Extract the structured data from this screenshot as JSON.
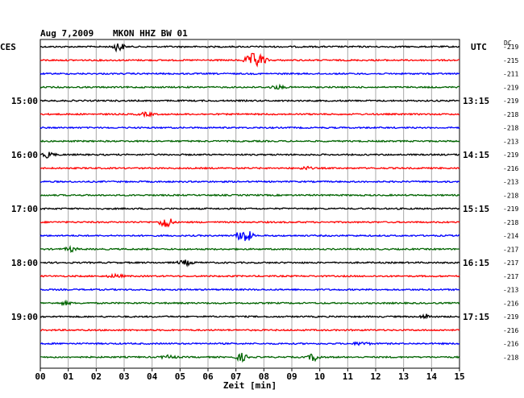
{
  "header": {
    "date": "Aug 7,2009",
    "station": "MKON HHZ BW 01",
    "left_timezone": "CES",
    "right_timezone": "UTC",
    "dc_label": "DC"
  },
  "chart_data": {
    "type": "line",
    "title": "",
    "xlabel": "Zeit [min]",
    "ylabel": "",
    "xlim": [
      0,
      15
    ],
    "x_ticks": [
      "00",
      "01",
      "02",
      "03",
      "04",
      "05",
      "06",
      "07",
      "08",
      "09",
      "10",
      "11",
      "12",
      "13",
      "14",
      "15"
    ],
    "minutes_per_trace": 15,
    "trace_colors": [
      "#000000",
      "#ff0000",
      "#0000ff",
      "#006400"
    ],
    "left_hour_labels": [
      {
        "trace": 4,
        "label": "15:00"
      },
      {
        "trace": 8,
        "label": "16:00"
      },
      {
        "trace": 12,
        "label": "17:00"
      },
      {
        "trace": 16,
        "label": "18:00"
      },
      {
        "trace": 20,
        "label": "19:00"
      }
    ],
    "right_hour_labels": [
      {
        "trace": 4,
        "label": "13:15"
      },
      {
        "trace": 8,
        "label": "14:15"
      },
      {
        "trace": 12,
        "label": "15:15"
      },
      {
        "trace": 16,
        "label": "16:15"
      },
      {
        "trace": 20,
        "label": "17:15"
      }
    ],
    "dc_offsets": [
      -219,
      -215,
      -211,
      -219,
      -219,
      -218,
      -218,
      -213,
      -219,
      -216,
      -213,
      -218,
      -219,
      -218,
      -214,
      -217,
      -217,
      -217,
      -213,
      -216,
      -219,
      -216,
      -216,
      -218
    ],
    "events": [
      {
        "trace": 0,
        "minute": 2.8,
        "amplitude": 6,
        "width": 0.3
      },
      {
        "trace": 1,
        "minute": 7.7,
        "amplitude": 10,
        "width": 0.5
      },
      {
        "trace": 3,
        "minute": 8.5,
        "amplitude": 2,
        "width": 0.4
      },
      {
        "trace": 5,
        "minute": 3.8,
        "amplitude": 2,
        "width": 0.4
      },
      {
        "trace": 8,
        "minute": 0.3,
        "amplitude": 4,
        "width": 0.3
      },
      {
        "trace": 9,
        "minute": 9.5,
        "amplitude": 2,
        "width": 0.3
      },
      {
        "trace": 13,
        "minute": 4.5,
        "amplitude": 9,
        "width": 0.3
      },
      {
        "trace": 14,
        "minute": 7.3,
        "amplitude": 9,
        "width": 0.4
      },
      {
        "trace": 15,
        "minute": 1.1,
        "amplitude": 3,
        "width": 0.3
      },
      {
        "trace": 16,
        "minute": 5.2,
        "amplitude": 3,
        "width": 0.4
      },
      {
        "trace": 17,
        "minute": 2.7,
        "amplitude": 2,
        "width": 0.4
      },
      {
        "trace": 19,
        "minute": 0.9,
        "amplitude": 2,
        "width": 0.3
      },
      {
        "trace": 20,
        "minute": 13.8,
        "amplitude": 3,
        "width": 0.3
      },
      {
        "trace": 22,
        "minute": 11.5,
        "amplitude": 2,
        "width": 0.4
      },
      {
        "trace": 23,
        "minute": 4.6,
        "amplitude": 2,
        "width": 0.4
      },
      {
        "trace": 23,
        "minute": 7.2,
        "amplitude": 5,
        "width": 0.3
      },
      {
        "trace": 23,
        "minute": 9.8,
        "amplitude": 5,
        "width": 0.3
      }
    ]
  }
}
